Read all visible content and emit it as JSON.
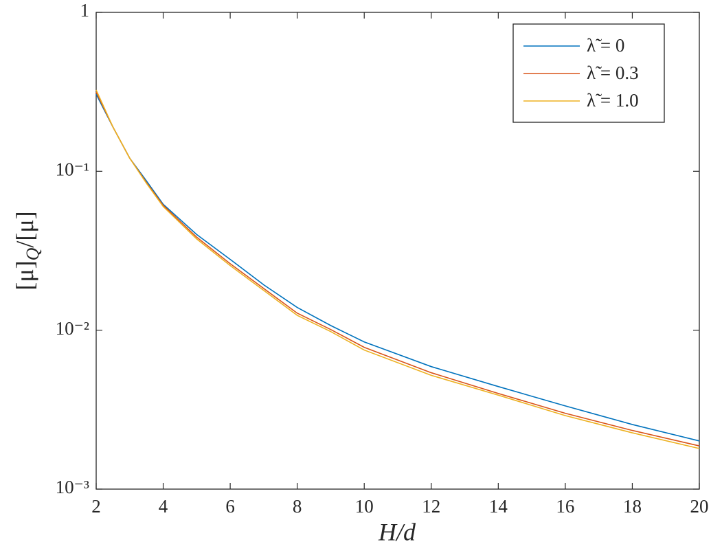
{
  "chart_data": {
    "type": "line",
    "xlabel": "H/d",
    "ylabel": [
      "[μ]",
      "Q",
      "/[μ]"
    ],
    "x": [
      2,
      2.5,
      3,
      3.5,
      4,
      5,
      6,
      7,
      8,
      9,
      10,
      12,
      14,
      16,
      18,
      20
    ],
    "series": [
      {
        "name": "λ̃ = 0",
        "color": "#0072BD",
        "values": [
          0.305,
          0.19,
          0.121,
          0.087,
          0.062,
          0.04,
          0.0279,
          0.0193,
          0.0139,
          0.0107,
          0.00844,
          0.0059,
          0.00442,
          0.00334,
          0.00255,
          0.00201
        ]
      },
      {
        "name": "λ̃ = 0.3",
        "color": "#D95319",
        "values": [
          0.315,
          0.19,
          0.121,
          0.085,
          0.061,
          0.0385,
          0.0262,
          0.0183,
          0.0128,
          0.0101,
          0.0078,
          0.0054,
          0.004,
          0.003,
          0.00234,
          0.00187
        ]
      },
      {
        "name": "λ̃ = 1.0",
        "color": "#EDB120",
        "values": [
          0.325,
          0.19,
          0.121,
          0.084,
          0.06,
          0.0375,
          0.0255,
          0.0178,
          0.0124,
          0.0098,
          0.0075,
          0.0052,
          0.0039,
          0.0029,
          0.00226,
          0.0018
        ]
      }
    ],
    "xlim": [
      2,
      20
    ],
    "xticks": [
      2,
      4,
      6,
      8,
      10,
      12,
      14,
      16,
      18,
      20
    ],
    "ylim": [
      0.001,
      1
    ],
    "yticks": [
      {
        "value": 0.001,
        "label": "10⁻³"
      },
      {
        "value": 0.01,
        "label": "10⁻²"
      },
      {
        "value": 0.1,
        "label": "10⁻¹"
      },
      1
    ],
    "yscale": "log",
    "grid": false,
    "legend": "upper right"
  }
}
